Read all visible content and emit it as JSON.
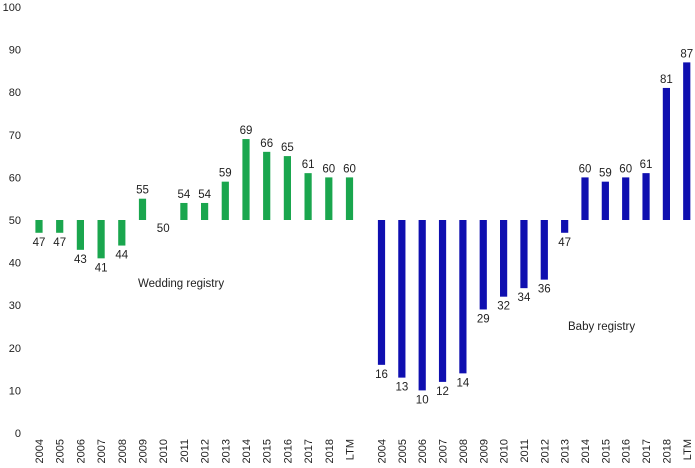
{
  "chart_data": {
    "type": "bar",
    "baseline": 50,
    "ylim": [
      0,
      100
    ],
    "yticks": [
      0,
      10,
      20,
      30,
      40,
      50,
      60,
      70,
      80,
      90,
      100
    ],
    "grid": false,
    "series": [
      {
        "name": "Wedding registry",
        "color": "#1aa64e",
        "categories": [
          "2004",
          "2005",
          "2006",
          "2007",
          "2008",
          "2009",
          "2010",
          "2011",
          "2012",
          "2013",
          "2014",
          "2015",
          "2016",
          "2017",
          "2018",
          "LTM"
        ],
        "values": [
          47,
          47,
          43,
          41,
          44,
          55,
          50,
          54,
          54,
          59,
          69,
          66,
          65,
          61,
          60,
          60
        ]
      },
      {
        "name": "Baby registry",
        "color": "#0f0fb0",
        "categories": [
          "2004",
          "2005",
          "2006",
          "2007",
          "2008",
          "2009",
          "2010",
          "2011",
          "2012",
          "2013",
          "2014",
          "2015",
          "2016",
          "2017",
          "2018",
          "LTM"
        ],
        "values": [
          16,
          13,
          10,
          12,
          14,
          29,
          32,
          34,
          36,
          47,
          60,
          59,
          60,
          61,
          81,
          87
        ]
      }
    ]
  }
}
